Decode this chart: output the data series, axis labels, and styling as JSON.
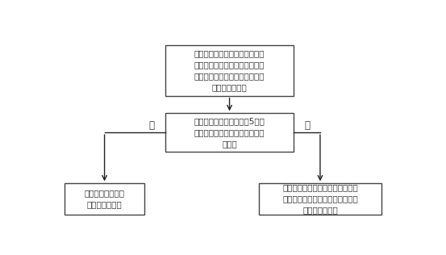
{
  "bg_color": "#ffffff",
  "box_color": "#ffffff",
  "box_edge_color": "#444444",
  "arrow_color": "#222222",
  "text_color": "#333333",
  "font_size": 7.5,
  "label_font_size": 8.5,
  "box1_text": "车辆检测模块内的设备检测传感\n器通过检测主控单元向车辆检测\n器接收模块发送心跳消息，发送\n频率为每秒一次",
  "box2_text": "车辆检测器接收模块判断5秒内\n是否接收到设备检测传感器的心\n跳消息",
  "box3_text": "当前时段设备检测\n传感器工作正常",
  "box4_text": "当前时段设备检测传感器工作异常\n，车辆检测器接收模块上报此设备\n检测传感器出错",
  "yes_label": "是",
  "no_label": "否"
}
